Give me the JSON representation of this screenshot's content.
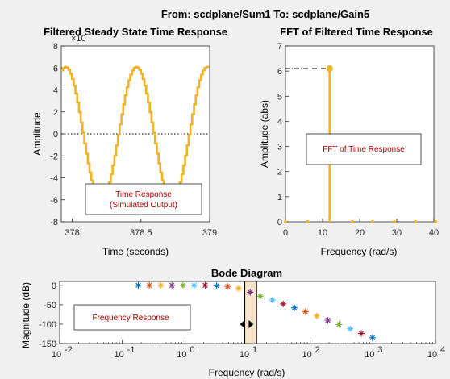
{
  "figure": {
    "suptitle": "From: scdplane/Sum1  To: scdplane/Gain5",
    "colors": {
      "axes_bg": "#ffffff",
      "figure_bg": "#f0f0f0",
      "signal": "#f0b323",
      "legend_text": "#b00000",
      "marker_colors": [
        "#0072bd",
        "#d95319",
        "#edb120",
        "#7e2f8e",
        "#77ac30",
        "#4dbeee",
        "#a2142f"
      ]
    }
  },
  "chart_data": [
    {
      "type": "line",
      "title": "Filtered Steady State Time Response",
      "xlabel": "Time (seconds)",
      "ylabel": "Amplitude",
      "xlim": [
        377.92,
        379.0
      ],
      "ylim": [
        -8,
        8
      ],
      "exponent_label": "×10",
      "xticks": [
        "378",
        "378.5",
        "379"
      ],
      "xtick_values": [
        378,
        378.5,
        379
      ],
      "yticks": [
        "8",
        "6",
        "4",
        "2",
        "0",
        "-2",
        "-4",
        "-6",
        "-8"
      ],
      "ytick_values": [
        8,
        6,
        4,
        2,
        0,
        -2,
        -4,
        -6,
        -8
      ],
      "signal": {
        "amplitude": 6.1,
        "period_s": 0.515,
        "peak_time_s": 378.462,
        "t_start": 377.92,
        "t_end": 379.0,
        "steps_per_period": 40
      },
      "zero_line": "dotted",
      "legend": {
        "text_lines": [
          "Time Response",
          "(Simulated Output)"
        ],
        "placement": "bottom-right"
      }
    },
    {
      "type": "stem",
      "title": "FFT of Filtered Time Response",
      "xlabel": "Frequency (rad/s)",
      "ylabel": "Amplitude (abs)",
      "xlim": [
        0,
        40
      ],
      "ylim": [
        0,
        7
      ],
      "xticks": [
        "0",
        "10",
        "20",
        "30",
        "40"
      ],
      "xtick_values": [
        0,
        10,
        20,
        30,
        40
      ],
      "yticks": [
        "0",
        "1",
        "2",
        "3",
        "4",
        "5",
        "6",
        "7"
      ],
      "ytick_values": [
        0,
        1,
        2,
        3,
        4,
        5,
        6,
        7
      ],
      "x": [
        0,
        6,
        11.9,
        18,
        23.5,
        29.3,
        35,
        40.5
      ],
      "y": [
        0,
        0,
        6.1,
        0,
        0,
        0,
        0,
        0
      ],
      "peak_reference_line": "dash-dot",
      "legend": {
        "text_lines": [
          "FFT of Time Response"
        ],
        "placement": "center-right"
      }
    },
    {
      "type": "scatter",
      "title": "Bode Diagram",
      "xlabel": "Frequency  (rad/s)",
      "ylabel": "Magnitude (dB)",
      "xscale": "log",
      "xlim": [
        0.01,
        10000
      ],
      "ylim": [
        -150,
        10
      ],
      "xticks": [
        "10",
        "10",
        "10",
        "10",
        "10",
        "10",
        "10"
      ],
      "xtick_exponents": [
        "-2",
        "-1",
        "0",
        "1",
        "2",
        "3",
        "4"
      ],
      "xtick_values": [
        0.01,
        0.1,
        1,
        10,
        100,
        1000,
        10000
      ],
      "yticks": [
        "0",
        "-50",
        "-100",
        "-150"
      ],
      "ytick_values": [
        0,
        -50,
        -100,
        -150
      ],
      "x": [
        0.18,
        0.27,
        0.41,
        0.62,
        0.93,
        1.4,
        2.1,
        3.2,
        4.8,
        7.2,
        11,
        16,
        25,
        37,
        56,
        84,
        127,
        191,
        288,
        434,
        654,
        985
      ],
      "y": [
        0,
        0,
        0,
        0,
        0,
        0,
        0,
        -1,
        -3,
        -8,
        -18,
        -28,
        -38,
        -48,
        -58,
        -68,
        -79,
        -90,
        -101,
        -112,
        -124,
        -135
      ],
      "selected_band": [
        9,
        14
      ],
      "legend": {
        "text_lines": [
          "Frequency Response"
        ],
        "placement": "bottom-left"
      }
    }
  ]
}
